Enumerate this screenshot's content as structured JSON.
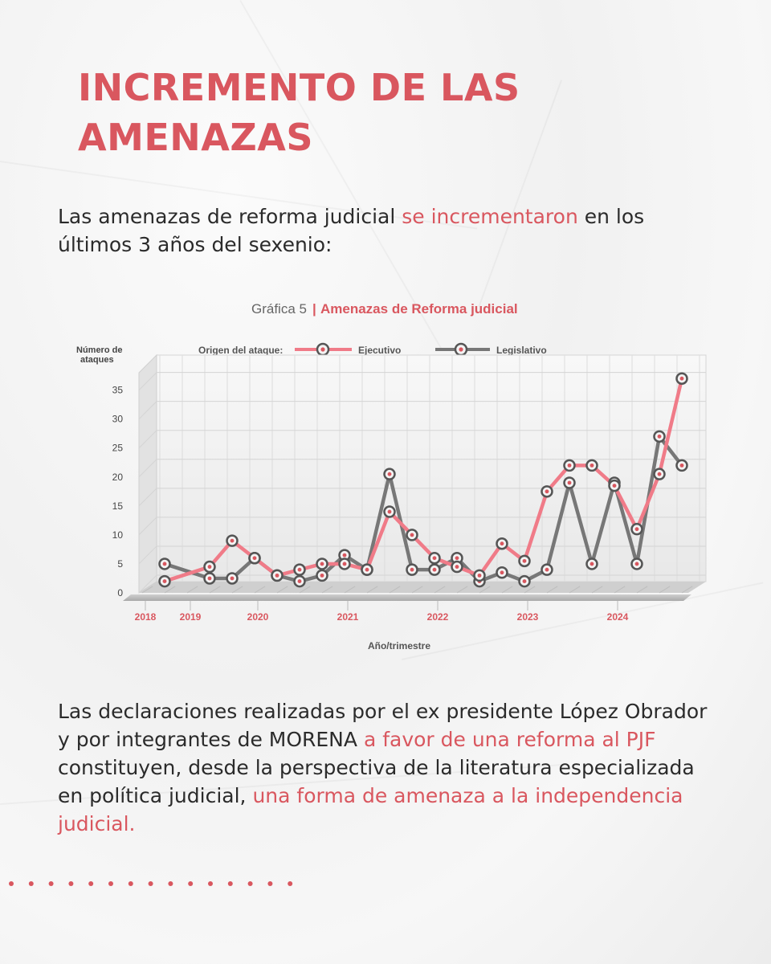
{
  "title": {
    "line1": "INCREMENTO DE LAS",
    "line2": "AMENAZAS"
  },
  "intro": {
    "before": "Las amenazas de reforma judicial ",
    "highlight": "se incrementaron",
    "after": " en los últimos 3 años del sexenio:"
  },
  "conclusion": {
    "part1": "Las declaraciones realizadas por el ex presidente López Obrador y por integrantes de MORENA ",
    "hl1": "a favor de una reforma al PJF",
    "part2": " constituyen, desde la perspectiva de la literatura especializada en política judicial, ",
    "hl2": "una forma de amenaza a la independencia judicial."
  },
  "colors": {
    "accent": "#d9575f",
    "ejecutivo": "#f07b88",
    "legislativo": "#777777"
  },
  "chart_data": {
    "type": "line",
    "title_prefix": "Gráfica 5",
    "title": "Amenazas de Reforma judicial",
    "ylabel": "Número de ataques",
    "xlabel": "Año/trimestre",
    "legend_title": "Origen del ataque:",
    "legend_position": "top",
    "ylim": [
      0,
      38
    ],
    "y_ticks": [
      0,
      5,
      10,
      15,
      20,
      25,
      30,
      35
    ],
    "x_labels": [
      {
        "label": "2018",
        "q": 0
      },
      {
        "label": "2019",
        "q": 2
      },
      {
        "label": "2020",
        "q": 5
      },
      {
        "label": "2021",
        "q": 9
      },
      {
        "label": "2022",
        "q": 13
      },
      {
        "label": "2023",
        "q": 17
      },
      {
        "label": "2024",
        "q": 21
      }
    ],
    "series": [
      {
        "name": "Ejecutivo",
        "color": "#f07b88",
        "points": [
          [
            1,
            2
          ],
          [
            3,
            4.5
          ],
          [
            4,
            9
          ],
          [
            5,
            6
          ],
          [
            6,
            3
          ],
          [
            7,
            4
          ],
          [
            8,
            5
          ],
          [
            9,
            5
          ],
          [
            10,
            4
          ],
          [
            11,
            14
          ],
          [
            12,
            10
          ],
          [
            13,
            6
          ],
          [
            14,
            4.5
          ],
          [
            15,
            3
          ],
          [
            16,
            8.5
          ],
          [
            17,
            5.5
          ],
          [
            18,
            17.5
          ],
          [
            19,
            22
          ],
          [
            20,
            22
          ],
          [
            21,
            18.5
          ],
          [
            22,
            11
          ],
          [
            23,
            20.5
          ],
          [
            24,
            37
          ]
        ]
      },
      {
        "name": "Legislativo",
        "color": "#777777",
        "points": [
          [
            1,
            5
          ],
          [
            3,
            2.5
          ],
          [
            4,
            2.5
          ],
          [
            5,
            6
          ],
          [
            6,
            3
          ],
          [
            7,
            2
          ],
          [
            8,
            3
          ],
          [
            9,
            6.5
          ],
          [
            10,
            4
          ],
          [
            11,
            20.5
          ],
          [
            12,
            4
          ],
          [
            13,
            4
          ],
          [
            14,
            6
          ],
          [
            15,
            2
          ],
          [
            16,
            3.5
          ],
          [
            17,
            2
          ],
          [
            18,
            4
          ],
          [
            19,
            19
          ],
          [
            20,
            5
          ],
          [
            21,
            19
          ],
          [
            22,
            5
          ],
          [
            23,
            27
          ],
          [
            24,
            22
          ]
        ]
      }
    ]
  }
}
